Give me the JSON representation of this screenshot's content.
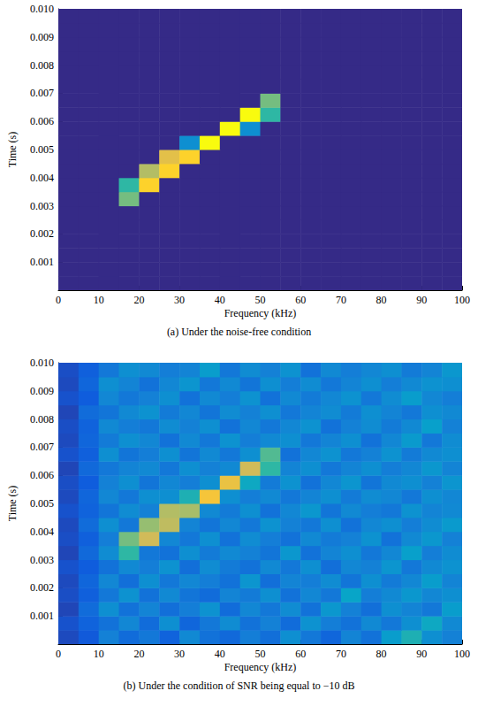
{
  "chart_data": [
    {
      "type": "heatmap",
      "title": "(a) Under the noise-free condition",
      "x_label": "Frequency (kHz)",
      "y_label": "Time (s)",
      "xlim": [
        0,
        100
      ],
      "ylim": [
        0,
        0.01
      ],
      "xticks": [
        0,
        10,
        20,
        30,
        40,
        50,
        60,
        70,
        80,
        90,
        100
      ],
      "yticks": [
        0.001,
        0.002,
        0.003,
        0.004,
        0.005,
        0.006,
        0.007,
        0.008,
        0.009,
        {
          "value": 0.01,
          "label": "0.010"
        }
      ],
      "zlim": [
        0,
        1
      ],
      "x_bins": [
        0,
        5,
        10,
        15,
        20,
        25,
        30,
        35,
        40,
        45,
        50,
        55,
        60,
        65,
        70,
        75,
        80,
        85,
        90,
        95,
        100
      ],
      "y_bins": [
        0,
        0.0005,
        0.001,
        0.0015,
        0.002,
        0.0025,
        0.003,
        0.0035,
        0.004,
        0.0045,
        0.005,
        0.0055,
        0.006,
        0.0065,
        0.007,
        0.0075,
        0.008,
        0.0085,
        0.009,
        0.0095,
        0.01
      ],
      "cells": [
        [
          0,
          0,
          0,
          0,
          0,
          0,
          0,
          0,
          0,
          0,
          0,
          0,
          0,
          0,
          0,
          0,
          0,
          0,
          0,
          0
        ],
        [
          0,
          0,
          0,
          0,
          0,
          0,
          0,
          0,
          0,
          0,
          0,
          0,
          0,
          0,
          0,
          0,
          0,
          0,
          0,
          0
        ],
        [
          0,
          0,
          0,
          0,
          0,
          0,
          0,
          0,
          0,
          0,
          0,
          0,
          0,
          0,
          0,
          0,
          0,
          0,
          0,
          0
        ],
        [
          0,
          0,
          0,
          0,
          0,
          0,
          0,
          0,
          0,
          0,
          0,
          0,
          0,
          0,
          0,
          0,
          0,
          0,
          0,
          0
        ],
        [
          0,
          0,
          0,
          0,
          0,
          0,
          0,
          0,
          0,
          0,
          0,
          0,
          0,
          0,
          0,
          0,
          0,
          0,
          0,
          0
        ],
        [
          0,
          0,
          0,
          0,
          0,
          0,
          0,
          0,
          0,
          0,
          0,
          0,
          0,
          0,
          0,
          0,
          0,
          0,
          0,
          0
        ],
        [
          0,
          0,
          0,
          0.6,
          0,
          0,
          0,
          0,
          0,
          0,
          0,
          0,
          0,
          0,
          0,
          0,
          0,
          0,
          0,
          0
        ],
        [
          0,
          0,
          0,
          0.5,
          0.9,
          0,
          0,
          0,
          0,
          0,
          0,
          0,
          0,
          0,
          0,
          0,
          0,
          0,
          0,
          0
        ],
        [
          0,
          0,
          0,
          0,
          0.7,
          0.9,
          0,
          0,
          0,
          0,
          0,
          0,
          0,
          0,
          0,
          0,
          0,
          0,
          0,
          0
        ],
        [
          0,
          0,
          0,
          0,
          0,
          0.8,
          0.9,
          0,
          0,
          0,
          0,
          0,
          0,
          0,
          0,
          0,
          0,
          0,
          0,
          0
        ],
        [
          0,
          0,
          0,
          0,
          0,
          0,
          0.3,
          1,
          0,
          0,
          0,
          0,
          0,
          0,
          0,
          0,
          0,
          0,
          0,
          0
        ],
        [
          0,
          0,
          0,
          0,
          0,
          0,
          0,
          0,
          1,
          0.3,
          0,
          0,
          0,
          0,
          0,
          0,
          0,
          0,
          0,
          0
        ],
        [
          0,
          0,
          0,
          0,
          0,
          0,
          0,
          0,
          0,
          1,
          0.5,
          0,
          0,
          0,
          0,
          0,
          0,
          0,
          0,
          0
        ],
        [
          0,
          0,
          0,
          0,
          0,
          0,
          0,
          0,
          0,
          0,
          0.6,
          0,
          0,
          0,
          0,
          0,
          0,
          0,
          0,
          0
        ],
        [
          0,
          0,
          0,
          0,
          0,
          0,
          0,
          0,
          0,
          0,
          0,
          0,
          0,
          0,
          0,
          0,
          0,
          0,
          0,
          0
        ],
        [
          0,
          0,
          0,
          0,
          0,
          0,
          0,
          0,
          0,
          0,
          0,
          0,
          0,
          0,
          0,
          0,
          0,
          0,
          0,
          0
        ],
        [
          0,
          0,
          0,
          0,
          0,
          0,
          0,
          0,
          0,
          0,
          0,
          0,
          0,
          0,
          0,
          0,
          0,
          0,
          0,
          0
        ],
        [
          0,
          0,
          0,
          0,
          0,
          0,
          0,
          0,
          0,
          0,
          0,
          0,
          0,
          0,
          0,
          0,
          0,
          0,
          0,
          0
        ],
        [
          0,
          0,
          0,
          0,
          0,
          0,
          0,
          0,
          0,
          0,
          0,
          0,
          0,
          0,
          0,
          0,
          0,
          0,
          0,
          0
        ],
        [
          0,
          0,
          0,
          0,
          0,
          0,
          0,
          0,
          0,
          0,
          0,
          0,
          0,
          0,
          0,
          0,
          0,
          0,
          0,
          0
        ]
      ]
    },
    {
      "type": "heatmap",
      "title": "(b) Under the condition of SNR being equal to −10 dB",
      "x_label": "Frequency (kHz)",
      "y_label": "Time (s)",
      "xlim": [
        0,
        100
      ],
      "ylim": [
        0,
        0.01
      ],
      "xticks": [
        0,
        10,
        20,
        30,
        40,
        50,
        60,
        70,
        80,
        90,
        100
      ],
      "yticks": [
        0.001,
        0.002,
        0.003,
        0.004,
        0.005,
        0.006,
        0.007,
        0.008,
        0.009,
        {
          "value": 0.01,
          "label": "0.010"
        }
      ],
      "zlim": [
        0,
        1
      ],
      "x_bins": [
        0,
        5,
        10,
        15,
        20,
        25,
        30,
        35,
        40,
        45,
        50,
        55,
        60,
        65,
        70,
        75,
        80,
        85,
        90,
        95,
        100
      ],
      "y_bins": [
        0,
        0.0005,
        0.001,
        0.0015,
        0.002,
        0.0025,
        0.003,
        0.0035,
        0.004,
        0.0045,
        0.005,
        0.0055,
        0.006,
        0.0065,
        0.007,
        0.0075,
        0.008,
        0.0085,
        0.009,
        0.0095,
        0.01
      ],
      "cells": [
        [
          0.08,
          0.12,
          0.25,
          0.18,
          0.22,
          0.15,
          0.28,
          0.2,
          0.17,
          0.24,
          0.19,
          0.3,
          0.22,
          0.16,
          0.26,
          0.2,
          0.35,
          0.45,
          0.3,
          0.25
        ],
        [
          0.1,
          0.15,
          0.2,
          0.27,
          0.18,
          0.3,
          0.16,
          0.22,
          0.29,
          0.2,
          0.25,
          0.18,
          0.31,
          0.24,
          0.2,
          0.28,
          0.22,
          0.3,
          0.4,
          0.28
        ],
        [
          0.07,
          0.18,
          0.3,
          0.2,
          0.26,
          0.19,
          0.24,
          0.31,
          0.18,
          0.27,
          0.22,
          0.29,
          0.2,
          0.33,
          0.25,
          0.19,
          0.3,
          0.26,
          0.22,
          0.35
        ],
        [
          0.09,
          0.14,
          0.22,
          0.31,
          0.2,
          0.28,
          0.21,
          0.18,
          0.26,
          0.23,
          0.3,
          0.2,
          0.27,
          0.22,
          0.38,
          0.24,
          0.28,
          0.33,
          0.27,
          0.3
        ],
        [
          0.08,
          0.16,
          0.27,
          0.19,
          0.3,
          0.22,
          0.27,
          0.24,
          0.2,
          0.32,
          0.19,
          0.26,
          0.24,
          0.29,
          0.21,
          0.3,
          0.23,
          0.27,
          0.35,
          0.26
        ],
        [
          0.1,
          0.13,
          0.2,
          0.28,
          0.24,
          0.31,
          0.19,
          0.29,
          0.23,
          0.2,
          0.28,
          0.22,
          0.3,
          0.19,
          0.27,
          0.25,
          0.32,
          0.22,
          0.28,
          0.31
        ],
        [
          0.07,
          0.17,
          0.29,
          0.5,
          0.22,
          0.2,
          0.3,
          0.23,
          0.28,
          0.25,
          0.21,
          0.33,
          0.2,
          0.26,
          0.3,
          0.22,
          0.27,
          0.36,
          0.24,
          0.29
        ],
        [
          0.09,
          0.14,
          0.24,
          0.6,
          0.75,
          0.27,
          0.22,
          0.3,
          0.2,
          0.29,
          0.24,
          0.2,
          0.28,
          0.23,
          0.25,
          0.31,
          0.2,
          0.28,
          0.33,
          0.25
        ],
        [
          0.08,
          0.18,
          0.3,
          0.22,
          0.65,
          0.72,
          0.26,
          0.21,
          0.27,
          0.22,
          0.31,
          0.25,
          0.22,
          0.3,
          0.2,
          0.27,
          0.3,
          0.24,
          0.29,
          0.34
        ],
        [
          0.1,
          0.15,
          0.21,
          0.29,
          0.25,
          0.7,
          0.68,
          0.28,
          0.23,
          0.3,
          0.2,
          0.27,
          0.33,
          0.21,
          0.28,
          0.24,
          0.22,
          0.31,
          0.26,
          0.28
        ],
        [
          0.08,
          0.16,
          0.27,
          0.22,
          0.3,
          0.3,
          0.45,
          0.85,
          0.3,
          0.24,
          0.28,
          0.22,
          0.26,
          0.3,
          0.23,
          0.29,
          0.27,
          0.22,
          0.3,
          0.27
        ],
        [
          0.09,
          0.13,
          0.25,
          0.3,
          0.21,
          0.27,
          0.24,
          0.3,
          0.82,
          0.4,
          0.23,
          0.31,
          0.2,
          0.27,
          0.32,
          0.21,
          0.28,
          0.3,
          0.25,
          0.32
        ],
        [
          0.07,
          0.17,
          0.22,
          0.26,
          0.28,
          0.22,
          0.3,
          0.25,
          0.28,
          0.75,
          0.5,
          0.26,
          0.3,
          0.22,
          0.26,
          0.3,
          0.24,
          0.27,
          0.33,
          0.26
        ],
        [
          0.1,
          0.14,
          0.3,
          0.21,
          0.24,
          0.3,
          0.21,
          0.28,
          0.22,
          0.3,
          0.55,
          0.2,
          0.27,
          0.31,
          0.22,
          0.25,
          0.31,
          0.23,
          0.28,
          0.3
        ],
        [
          0.08,
          0.16,
          0.23,
          0.3,
          0.27,
          0.2,
          0.28,
          0.22,
          0.31,
          0.24,
          0.28,
          0.3,
          0.22,
          0.26,
          0.3,
          0.2,
          0.27,
          0.34,
          0.22,
          0.29
        ],
        [
          0.09,
          0.15,
          0.28,
          0.24,
          0.22,
          0.29,
          0.25,
          0.3,
          0.2,
          0.27,
          0.22,
          0.27,
          0.31,
          0.2,
          0.25,
          0.29,
          0.23,
          0.28,
          0.36,
          0.25
        ],
        [
          0.07,
          0.18,
          0.21,
          0.28,
          0.31,
          0.23,
          0.27,
          0.21,
          0.29,
          0.25,
          0.3,
          0.22,
          0.26,
          0.29,
          0.23,
          0.3,
          0.26,
          0.22,
          0.3,
          0.28
        ],
        [
          0.1,
          0.13,
          0.27,
          0.22,
          0.25,
          0.3,
          0.2,
          0.28,
          0.24,
          0.31,
          0.2,
          0.28,
          0.23,
          0.27,
          0.31,
          0.22,
          0.29,
          0.35,
          0.27,
          0.24
        ],
        [
          0.08,
          0.16,
          0.3,
          0.26,
          0.2,
          0.27,
          0.32,
          0.22,
          0.28,
          0.21,
          0.3,
          0.24,
          0.29,
          0.22,
          0.26,
          0.3,
          0.24,
          0.28,
          0.31,
          0.3
        ],
        [
          0.09,
          0.14,
          0.22,
          0.3,
          0.28,
          0.24,
          0.26,
          0.35,
          0.22,
          0.29,
          0.25,
          0.31,
          0.2,
          0.28,
          0.24,
          0.27,
          0.3,
          0.23,
          0.26,
          0.33
        ]
      ]
    }
  ]
}
